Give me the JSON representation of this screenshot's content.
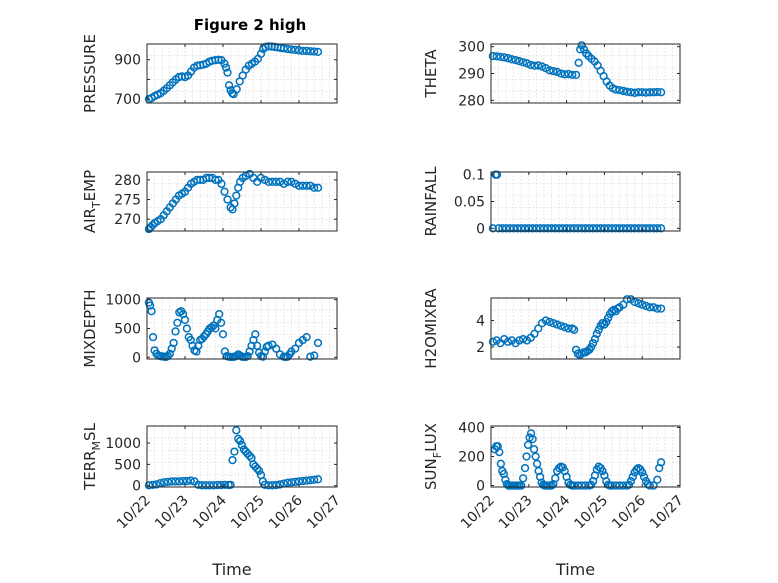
{
  "figure": {
    "title": "Figure 2 high",
    "xlabel": "Time",
    "xtick_labels": [
      "10/22",
      "10/23",
      "10/24",
      "10/25",
      "10/26",
      "10/27"
    ],
    "marker_color": "#0072bd"
  },
  "chart_data": [
    {
      "type": "scatter",
      "ylabel": "PRESSURE",
      "ylabel_subscript": "",
      "ylabel_suffix": "",
      "yticks": [
        700,
        800,
        900
      ],
      "ytick_labels": [
        "700",
        "",
        "900"
      ],
      "ylim": [
        680,
        980
      ],
      "xlim": [
        0,
        5
      ],
      "x": [
        0.05,
        0.12,
        0.2,
        0.28,
        0.36,
        0.44,
        0.52,
        0.6,
        0.68,
        0.76,
        0.84,
        0.92,
        1.0,
        1.08,
        1.16,
        1.24,
        1.32,
        1.4,
        1.48,
        1.56,
        1.64,
        1.72,
        1.8,
        1.88,
        1.96,
        2.04,
        2.08,
        2.12,
        2.16,
        2.2,
        2.24,
        2.28,
        2.36,
        2.44,
        2.52,
        2.6,
        2.68,
        2.76,
        2.84,
        2.92,
        3.0,
        3.06,
        3.12,
        3.2,
        3.28,
        3.36,
        3.44,
        3.52,
        3.6,
        3.7,
        3.8,
        3.9,
        4.0,
        4.1,
        4.2,
        4.3,
        4.4,
        4.5
      ],
      "y": [
        700,
        705,
        715,
        722,
        730,
        742,
        755,
        770,
        785,
        800,
        812,
        815,
        812,
        820,
        840,
        860,
        870,
        872,
        875,
        880,
        890,
        895,
        898,
        900,
        898,
        880,
        860,
        835,
        770,
        745,
        730,
        725,
        750,
        790,
        820,
        850,
        870,
        880,
        890,
        905,
        930,
        955,
        965,
        968,
        967,
        965,
        963,
        960,
        958,
        955,
        952,
        950,
        948,
        945,
        945,
        943,
        942,
        940
      ]
    },
    {
      "type": "scatter",
      "ylabel": "THETA",
      "ylabel_subscript": "",
      "ylabel_suffix": "",
      "yticks": [
        280,
        290,
        300
      ],
      "ytick_labels": [
        "280",
        "290",
        "300"
      ],
      "ylim": [
        279,
        301
      ],
      "xlim": [
        0,
        5
      ],
      "x": [
        0.05,
        0.15,
        0.25,
        0.35,
        0.45,
        0.55,
        0.65,
        0.75,
        0.85,
        0.95,
        1.05,
        1.15,
        1.25,
        1.35,
        1.45,
        1.55,
        1.65,
        1.75,
        1.85,
        1.95,
        2.05,
        2.15,
        2.25,
        2.32,
        2.36,
        2.4,
        2.46,
        2.52,
        2.58,
        2.66,
        2.74,
        2.82,
        2.9,
        2.98,
        3.06,
        3.14,
        3.22,
        3.3,
        3.4,
        3.5,
        3.6,
        3.7,
        3.8,
        3.9,
        4.0,
        4.1,
        4.2,
        4.3,
        4.4,
        4.5
      ],
      "y": [
        296.5,
        296.4,
        296.2,
        296,
        295.7,
        295.3,
        295,
        294.6,
        294.2,
        293.8,
        293.2,
        292.9,
        293,
        292.6,
        292,
        291.2,
        290.9,
        290.6,
        290,
        289.7,
        289.8,
        289.5,
        289.5,
        294,
        299,
        300.5,
        299,
        297.5,
        296.5,
        295.5,
        294.5,
        293,
        291,
        289,
        287,
        285.5,
        284.5,
        284,
        283.8,
        283.5,
        283.2,
        283,
        282.8,
        283,
        283,
        282.9,
        283,
        283,
        283.1,
        283
      ]
    },
    {
      "type": "scatter",
      "ylabel": "AIR",
      "ylabel_subscript": "T",
      "ylabel_suffix": "EMP",
      "yticks": [
        270,
        275,
        280
      ],
      "ytick_labels": [
        "270",
        "275",
        "280"
      ],
      "ylim": [
        267,
        282
      ],
      "xlim": [
        0,
        5
      ],
      "x": [
        0.05,
        0.1,
        0.15,
        0.2,
        0.28,
        0.36,
        0.44,
        0.52,
        0.6,
        0.68,
        0.76,
        0.84,
        0.92,
        1.0,
        1.08,
        1.16,
        1.24,
        1.32,
        1.4,
        1.48,
        1.56,
        1.64,
        1.72,
        1.8,
        1.88,
        1.96,
        2.04,
        2.12,
        2.2,
        2.25,
        2.3,
        2.35,
        2.4,
        2.45,
        2.52,
        2.6,
        2.7,
        2.8,
        2.9,
        3.0,
        3.1,
        3.2,
        3.3,
        3.4,
        3.5,
        3.6,
        3.7,
        3.8,
        3.9,
        4.0,
        4.1,
        4.2,
        4.3,
        4.4,
        4.5
      ],
      "y": [
        267.5,
        268,
        268.5,
        269,
        269.5,
        270,
        271,
        272,
        273,
        274,
        275,
        276,
        276.5,
        277,
        278,
        279,
        279.5,
        280,
        280,
        280,
        280.5,
        280.5,
        280.5,
        280,
        280,
        279,
        277,
        275,
        273,
        272.5,
        274,
        276,
        278,
        279.5,
        280.5,
        281,
        281.5,
        280.5,
        279.5,
        280.5,
        280,
        279.5,
        279.5,
        279.5,
        279.5,
        279,
        279.5,
        279.5,
        279,
        278.5,
        278.5,
        278.5,
        278.5,
        278,
        278
      ]
    },
    {
      "type": "scatter",
      "ylabel": "RAINFALL",
      "ylabel_subscript": "",
      "ylabel_suffix": "",
      "yticks": [
        0,
        0.05,
        0.1
      ],
      "ytick_labels": [
        "0",
        "0.05",
        "0.1"
      ],
      "ylim": [
        -0.005,
        0.105
      ],
      "xlim": [
        0,
        5
      ],
      "x": [
        0.05,
        0.12,
        0.16,
        0.2,
        0.3,
        0.4,
        0.5,
        0.6,
        0.7,
        0.8,
        0.9,
        1.0,
        1.1,
        1.2,
        1.3,
        1.4,
        1.5,
        1.6,
        1.7,
        1.8,
        1.9,
        2.0,
        2.1,
        2.2,
        2.3,
        2.4,
        2.5,
        2.6,
        2.7,
        2.8,
        2.9,
        3.0,
        3.1,
        3.2,
        3.3,
        3.4,
        3.5,
        3.6,
        3.7,
        3.8,
        3.9,
        4.0,
        4.1,
        4.2,
        4.3,
        4.4,
        4.5
      ],
      "y": [
        0,
        0.1,
        0.1,
        0,
        0,
        0,
        0,
        0,
        0,
        0,
        0,
        0,
        0,
        0,
        0,
        0,
        0,
        0,
        0,
        0,
        0,
        0,
        0,
        0,
        0,
        0,
        0,
        0,
        0,
        0,
        0,
        0,
        0,
        0,
        0,
        0,
        0,
        0,
        0,
        0,
        0,
        0,
        0,
        0,
        0,
        0,
        0
      ]
    },
    {
      "type": "scatter",
      "ylabel": "MIXDEPTH",
      "ylabel_subscript": "",
      "ylabel_suffix": "",
      "yticks": [
        0,
        500,
        1000
      ],
      "ytick_labels": [
        "0",
        "500",
        "1000"
      ],
      "ylim": [
        -30,
        1030
      ],
      "xlim": [
        0,
        5
      ],
      "x": [
        0.05,
        0.08,
        0.12,
        0.16,
        0.2,
        0.25,
        0.3,
        0.35,
        0.4,
        0.45,
        0.5,
        0.55,
        0.6,
        0.65,
        0.7,
        0.75,
        0.8,
        0.85,
        0.9,
        0.95,
        1.0,
        1.05,
        1.1,
        1.15,
        1.2,
        1.25,
        1.3,
        1.35,
        1.4,
        1.45,
        1.5,
        1.55,
        1.6,
        1.65,
        1.7,
        1.75,
        1.8,
        1.85,
        1.9,
        1.95,
        2.0,
        2.05,
        2.1,
        2.15,
        2.2,
        2.25,
        2.3,
        2.35,
        2.4,
        2.45,
        2.5,
        2.55,
        2.6,
        2.65,
        2.7,
        2.75,
        2.8,
        2.85,
        2.9,
        2.95,
        3.0,
        3.05,
        3.1,
        3.15,
        3.2,
        3.3,
        3.4,
        3.5,
        3.6,
        3.65,
        3.7,
        3.75,
        3.8,
        3.9,
        4.0,
        4.1,
        4.2,
        4.3,
        4.4,
        4.5
      ],
      "y": [
        950,
        900,
        800,
        350,
        120,
        60,
        30,
        20,
        15,
        10,
        5,
        20,
        60,
        150,
        250,
        450,
        600,
        780,
        800,
        750,
        650,
        500,
        350,
        300,
        200,
        120,
        100,
        200,
        300,
        320,
        360,
        400,
        450,
        500,
        520,
        550,
        500,
        650,
        750,
        600,
        400,
        100,
        20,
        10,
        5,
        5,
        10,
        20,
        50,
        30,
        10,
        5,
        5,
        20,
        100,
        200,
        300,
        400,
        200,
        80,
        20,
        10,
        100,
        180,
        200,
        220,
        150,
        50,
        10,
        5,
        10,
        50,
        100,
        150,
        250,
        300,
        350,
        10,
        30,
        250
      ]
    },
    {
      "type": "scatter",
      "ylabel": "H2OMIXRA",
      "ylabel_subscript": "",
      "ylabel_suffix": "",
      "yticks": [
        2,
        4
      ],
      "ytick_labels": [
        "2",
        "4"
      ],
      "ylim": [
        1.1,
        5.7
      ],
      "xlim": [
        0,
        5
      ],
      "x": [
        0.05,
        0.15,
        0.25,
        0.35,
        0.45,
        0.55,
        0.65,
        0.75,
        0.85,
        0.95,
        1.05,
        1.15,
        1.25,
        1.35,
        1.45,
        1.55,
        1.65,
        1.75,
        1.85,
        1.95,
        2.05,
        2.15,
        2.2,
        2.25,
        2.3,
        2.35,
        2.4,
        2.45,
        2.5,
        2.55,
        2.6,
        2.65,
        2.7,
        2.75,
        2.8,
        2.85,
        2.9,
        2.95,
        3.0,
        3.05,
        3.1,
        3.15,
        3.2,
        3.25,
        3.3,
        3.35,
        3.4,
        3.5,
        3.6,
        3.7,
        3.8,
        3.9,
        4.0,
        4.1,
        4.2,
        4.3,
        4.4,
        4.5
      ],
      "y": [
        2.4,
        2.5,
        2.3,
        2.6,
        2.4,
        2.5,
        2.3,
        2.5,
        2.6,
        2.5,
        2.7,
        3.0,
        3.4,
        3.8,
        4.0,
        3.9,
        3.8,
        3.7,
        3.6,
        3.5,
        3.4,
        3.4,
        3.3,
        1.8,
        1.5,
        1.4,
        1.5,
        1.6,
        1.6,
        1.7,
        1.8,
        2.0,
        2.3,
        2.6,
        3.0,
        3.3,
        3.6,
        3.8,
        3.7,
        3.9,
        4.2,
        4.5,
        4.7,
        4.8,
        4.7,
        4.9,
        5.0,
        5.2,
        5.6,
        5.6,
        5.4,
        5.3,
        5.2,
        5.1,
        5.0,
        5.0,
        4.9,
        4.9
      ]
    },
    {
      "type": "scatter",
      "ylabel": "TERR",
      "ylabel_subscript": "M",
      "ylabel_suffix": "SL",
      "yticks": [
        0,
        500,
        1000
      ],
      "ytick_labels": [
        "0",
        "500",
        "1000"
      ],
      "ylim": [
        -30,
        1400
      ],
      "xlim": [
        0,
        5
      ],
      "x": [
        0.05,
        0.15,
        0.25,
        0.35,
        0.45,
        0.55,
        0.65,
        0.75,
        0.85,
        0.95,
        1.05,
        1.15,
        1.25,
        1.35,
        1.45,
        1.55,
        1.65,
        1.75,
        1.85,
        1.95,
        2.05,
        2.15,
        2.2,
        2.25,
        2.3,
        2.35,
        2.4,
        2.45,
        2.5,
        2.55,
        2.6,
        2.65,
        2.7,
        2.75,
        2.8,
        2.85,
        2.9,
        2.95,
        3.0,
        3.05,
        3.1,
        3.2,
        3.3,
        3.4,
        3.5,
        3.6,
        3.7,
        3.8,
        3.9,
        4.0,
        4.1,
        4.2,
        4.3,
        4.4,
        4.5
      ],
      "y": [
        10,
        20,
        30,
        60,
        80,
        90,
        100,
        100,
        100,
        110,
        110,
        120,
        100,
        20,
        10,
        10,
        10,
        10,
        15,
        15,
        20,
        15,
        20,
        600,
        800,
        1300,
        1100,
        1050,
        950,
        850,
        800,
        750,
        700,
        650,
        500,
        450,
        400,
        350,
        250,
        100,
        20,
        10,
        10,
        15,
        30,
        50,
        70,
        80,
        90,
        100,
        110,
        120,
        130,
        140,
        150
      ]
    },
    {
      "type": "scatter",
      "ylabel": "SUN",
      "ylabel_subscript": "F",
      "ylabel_suffix": "LUX",
      "yticks": [
        0,
        200,
        400
      ],
      "ytick_labels": [
        "0",
        "200",
        "400"
      ],
      "ylim": [
        -10,
        410
      ],
      "xlim": [
        0,
        5
      ],
      "x": [
        0.1,
        0.14,
        0.18,
        0.22,
        0.26,
        0.3,
        0.34,
        0.38,
        0.42,
        0.46,
        0.5,
        0.55,
        0.6,
        0.65,
        0.7,
        0.75,
        0.8,
        0.85,
        0.9,
        0.94,
        0.98,
        1.02,
        1.06,
        1.1,
        1.14,
        1.18,
        1.22,
        1.26,
        1.3,
        1.34,
        1.38,
        1.42,
        1.46,
        1.5,
        1.55,
        1.6,
        1.65,
        1.7,
        1.75,
        1.8,
        1.85,
        1.9,
        1.95,
        2.0,
        2.05,
        2.1,
        2.15,
        2.2,
        2.3,
        2.4,
        2.5,
        2.6,
        2.65,
        2.7,
        2.75,
        2.8,
        2.85,
        2.9,
        2.95,
        3.0,
        3.05,
        3.1,
        3.15,
        3.2,
        3.3,
        3.4,
        3.5,
        3.6,
        3.65,
        3.7,
        3.75,
        3.8,
        3.85,
        3.9,
        3.95,
        4.0,
        4.05,
        4.1,
        4.15,
        4.2,
        4.3,
        4.4,
        4.45,
        4.5
      ],
      "y": [
        250,
        270,
        270,
        230,
        150,
        100,
        80,
        40,
        10,
        0,
        0,
        0,
        0,
        0,
        0,
        0,
        0,
        50,
        120,
        200,
        280,
        330,
        360,
        320,
        250,
        200,
        150,
        100,
        60,
        20,
        5,
        0,
        0,
        0,
        0,
        0,
        10,
        50,
        100,
        120,
        130,
        125,
        100,
        60,
        20,
        5,
        0,
        0,
        0,
        0,
        0,
        0,
        5,
        30,
        70,
        110,
        130,
        120,
        100,
        70,
        30,
        5,
        0,
        0,
        0,
        0,
        0,
        0,
        5,
        30,
        60,
        90,
        110,
        120,
        110,
        90,
        60,
        30,
        10,
        0,
        0,
        40,
        120,
        160
      ]
    }
  ]
}
